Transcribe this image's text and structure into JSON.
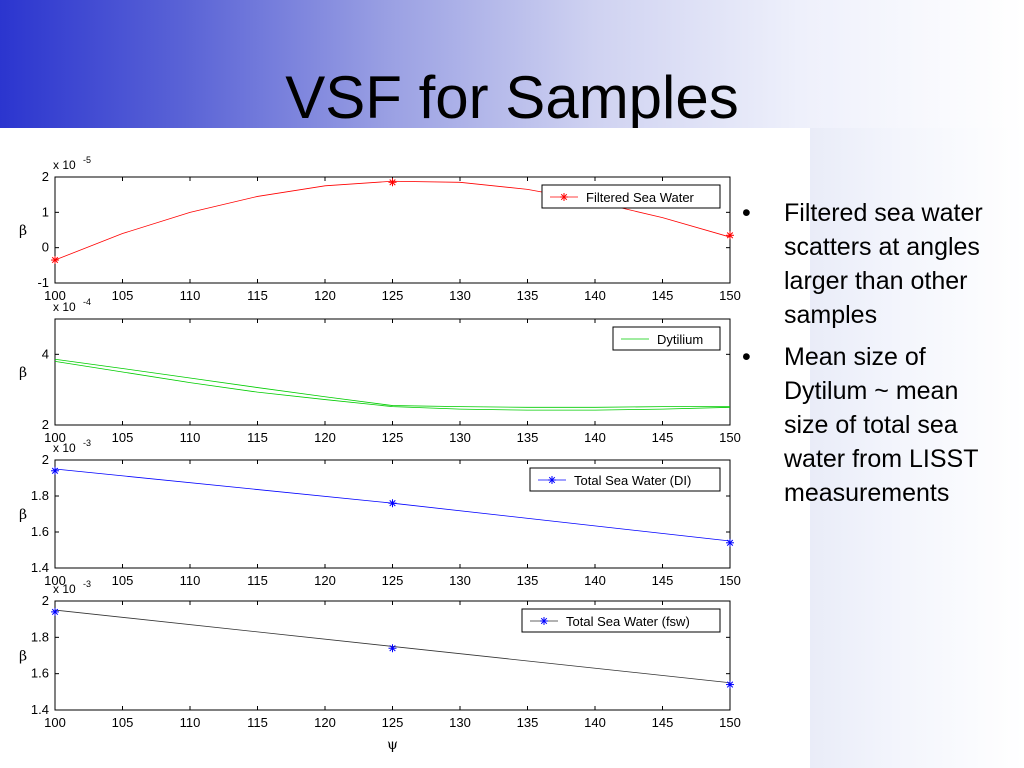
{
  "slide": {
    "title": "VSF for Samples",
    "bullets": [
      "Filtered sea water scatters at angles larger than other samples",
      "Mean size of Dytilum ~ mean size of total sea water from LISST measurements"
    ],
    "bullet_char": "•"
  },
  "colors": {
    "header_gradient_start": "#2b35cf",
    "header_gradient_end": "#ffffff"
  },
  "chart_data": [
    {
      "type": "line",
      "ylabel": "β",
      "xlabel": "ψ",
      "exponent_label": "x 10",
      "exponent": "-5",
      "xlim": [
        100,
        150
      ],
      "ylim": [
        -1,
        2
      ],
      "x_ticks": [
        100,
        105,
        110,
        115,
        120,
        125,
        130,
        135,
        140,
        145,
        150
      ],
      "y_ticks": [
        -1,
        0,
        1,
        2
      ],
      "series": [
        {
          "name": "Filtered Sea Water",
          "color": "#ff0000",
          "marker": "star",
          "x": [
            100,
            105,
            110,
            115,
            120,
            125,
            130,
            135,
            140,
            145,
            150
          ],
          "y": [
            -0.35,
            0.4,
            1.0,
            1.45,
            1.75,
            1.88,
            1.85,
            1.65,
            1.3,
            0.85,
            0.3
          ],
          "marker_x": [
            100,
            125,
            150
          ],
          "marker_y": [
            -0.35,
            1.85,
            0.35
          ]
        }
      ],
      "legend": "top-right"
    },
    {
      "type": "line",
      "ylabel": "β",
      "xlabel": "ψ",
      "exponent_label": "x 10",
      "exponent": "-4",
      "xlim": [
        100,
        150
      ],
      "ylim": [
        2,
        5
      ],
      "x_ticks": [
        100,
        105,
        110,
        115,
        120,
        125,
        130,
        135,
        140,
        145,
        150
      ],
      "y_ticks": [
        2,
        4
      ],
      "series": [
        {
          "name": "Dytilium",
          "color": "#00cc00",
          "marker": "none",
          "x": [
            100,
            105,
            110,
            115,
            120,
            125,
            130,
            135,
            140,
            145,
            150
          ],
          "y": [
            3.8,
            3.5,
            3.2,
            2.93,
            2.72,
            2.52,
            2.45,
            2.42,
            2.42,
            2.45,
            2.5
          ]
        },
        {
          "name": "",
          "color": "#00cc00",
          "marker": "none",
          "x": [
            100,
            105,
            110,
            115,
            120,
            125,
            130,
            135,
            140,
            145,
            150
          ],
          "y": [
            3.86,
            3.6,
            3.33,
            3.06,
            2.8,
            2.55,
            2.52,
            2.5,
            2.5,
            2.52,
            2.52
          ]
        }
      ],
      "legend": "top-right"
    },
    {
      "type": "line",
      "ylabel": "β",
      "xlabel": "ψ",
      "exponent_label": "x 10",
      "exponent": "-3",
      "xlim": [
        100,
        150
      ],
      "ylim": [
        1.4,
        2
      ],
      "x_ticks": [
        100,
        105,
        110,
        115,
        120,
        125,
        130,
        135,
        140,
        145,
        150
      ],
      "y_ticks": [
        1.4,
        1.6,
        1.8,
        2
      ],
      "series": [
        {
          "name": "Total Sea Water (DI)",
          "color": "#0000ff",
          "marker": "star",
          "x": [
            100,
            125,
            150
          ],
          "y": [
            1.95,
            1.76,
            1.55
          ],
          "marker_x": [
            100,
            125,
            150
          ],
          "marker_y": [
            1.94,
            1.76,
            1.54
          ]
        }
      ],
      "legend": "top-right"
    },
    {
      "type": "line",
      "ylabel": "β",
      "xlabel": "ψ",
      "exponent_label": "x 10",
      "exponent": "-3",
      "xlim": [
        100,
        150
      ],
      "ylim": [
        1.4,
        2
      ],
      "x_ticks": [
        100,
        105,
        110,
        115,
        120,
        125,
        130,
        135,
        140,
        145,
        150
      ],
      "y_ticks": [
        1.4,
        1.6,
        1.8,
        2
      ],
      "series": [
        {
          "name": "Total Sea Water (fsw)",
          "color": "#333333",
          "marker": "star",
          "marker_color": "#0000ff",
          "x": [
            100,
            125,
            150
          ],
          "y": [
            1.95,
            1.75,
            1.55
          ],
          "marker_x": [
            100,
            125,
            150
          ],
          "marker_y": [
            1.94,
            1.74,
            1.54
          ]
        }
      ],
      "legend": "top-right"
    }
  ]
}
